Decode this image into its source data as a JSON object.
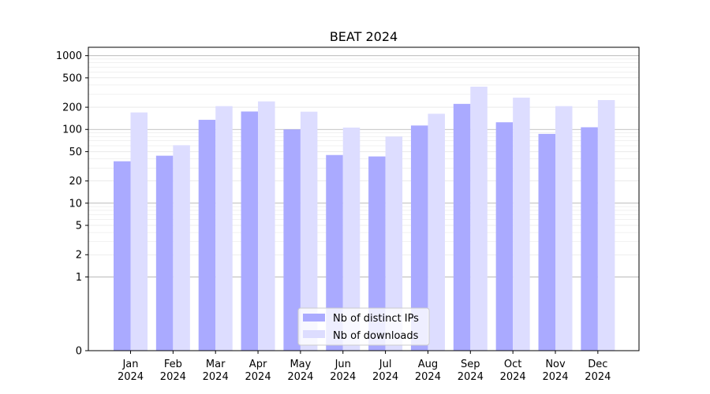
{
  "chart_data": {
    "type": "bar",
    "title": "BEAT 2024",
    "xlabel": "",
    "ylabel": "",
    "yscale": "symlog",
    "ylim": [
      0,
      1300
    ],
    "y_ticks": [
      0,
      1,
      2,
      5,
      10,
      20,
      50,
      100,
      200,
      500,
      1000
    ],
    "y_tick_labels": [
      "0",
      "1",
      "2",
      "5",
      "10",
      "20",
      "50",
      "100",
      "200",
      "500",
      "1000"
    ],
    "categories": [
      "Jan\n2024",
      "Feb\n2024",
      "Mar\n2024",
      "Apr\n2024",
      "May\n2024",
      "Jun\n2024",
      "Jul\n2024",
      "Aug\n2024",
      "Sep\n2024",
      "Oct\n2024",
      "Nov\n2024",
      "Dec\n2024"
    ],
    "series": [
      {
        "name": "Nb of distinct IPs",
        "color": "#aaaaff",
        "values": [
          37,
          44,
          135,
          175,
          100,
          45,
          43,
          113,
          222,
          125,
          87,
          107
        ]
      },
      {
        "name": "Nb of downloads",
        "color": "#ddddff",
        "values": [
          170,
          61,
          207,
          240,
          174,
          106,
          80,
          163,
          380,
          270,
          207,
          250
        ]
      }
    ],
    "grid": true,
    "legend_position": "bottom-center"
  }
}
